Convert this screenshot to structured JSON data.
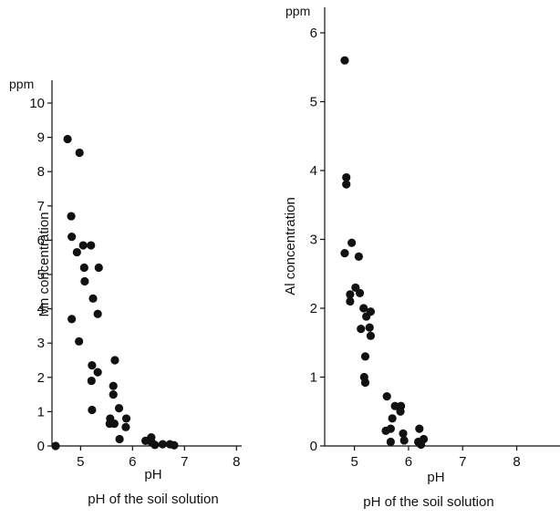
{
  "figure": {
    "background": "#ffffff",
    "ink": "#111111"
  },
  "chart_data": [
    {
      "type": "scatter",
      "title": "",
      "xlabel": "pH",
      "ylabel": "Mn concentration",
      "y_unit": "ppm",
      "caption": "pH of the soil solution",
      "xlim": [
        4.45,
        8.1
      ],
      "ylim": [
        0,
        10
      ],
      "xticks": [
        5,
        6,
        7,
        8
      ],
      "yticks": [
        0,
        1,
        2,
        3,
        4,
        5,
        6,
        7,
        8,
        9,
        10
      ],
      "grid": false,
      "legend": "none",
      "marker_color": "#111111",
      "points": [
        {
          "x": 4.52,
          "y": 0.0
        },
        {
          "x": 4.75,
          "y": 8.95
        },
        {
          "x": 4.98,
          "y": 8.55
        },
        {
          "x": 4.82,
          "y": 6.7
        },
        {
          "x": 4.83,
          "y": 6.1
        },
        {
          "x": 4.93,
          "y": 5.65
        },
        {
          "x": 5.05,
          "y": 5.85
        },
        {
          "x": 5.2,
          "y": 5.85
        },
        {
          "x": 5.07,
          "y": 5.2
        },
        {
          "x": 5.35,
          "y": 5.2
        },
        {
          "x": 5.08,
          "y": 4.8
        },
        {
          "x": 5.24,
          "y": 4.3
        },
        {
          "x": 5.33,
          "y": 3.85
        },
        {
          "x": 4.83,
          "y": 3.7
        },
        {
          "x": 4.97,
          "y": 3.05
        },
        {
          "x": 5.22,
          "y": 2.35
        },
        {
          "x": 5.33,
          "y": 2.15
        },
        {
          "x": 5.21,
          "y": 1.9
        },
        {
          "x": 5.66,
          "y": 2.5
        },
        {
          "x": 5.63,
          "y": 1.75
        },
        {
          "x": 5.63,
          "y": 1.5
        },
        {
          "x": 5.74,
          "y": 1.1
        },
        {
          "x": 5.22,
          "y": 1.05
        },
        {
          "x": 5.88,
          "y": 0.8
        },
        {
          "x": 5.57,
          "y": 0.8
        },
        {
          "x": 5.56,
          "y": 0.65
        },
        {
          "x": 5.65,
          "y": 0.65
        },
        {
          "x": 5.87,
          "y": 0.55
        },
        {
          "x": 5.75,
          "y": 0.2
        },
        {
          "x": 6.25,
          "y": 0.15
        },
        {
          "x": 6.36,
          "y": 0.25
        },
        {
          "x": 6.37,
          "y": 0.1
        },
        {
          "x": 6.43,
          "y": 0.03
        },
        {
          "x": 6.58,
          "y": 0.05
        },
        {
          "x": 6.72,
          "y": 0.05
        },
        {
          "x": 6.8,
          "y": 0.02
        }
      ]
    },
    {
      "type": "scatter",
      "title": "",
      "xlabel": "pH",
      "ylabel": "Al concentration",
      "y_unit": "ppm",
      "caption": "pH of the soil solution",
      "xlim": [
        4.45,
        8.8
      ],
      "ylim": [
        0,
        6
      ],
      "xticks": [
        5,
        6,
        7,
        8
      ],
      "yticks": [
        0,
        1,
        2,
        3,
        4,
        5,
        6
      ],
      "grid": false,
      "legend": "none",
      "marker_color": "#111111",
      "points": [
        {
          "x": 4.82,
          "y": 5.6
        },
        {
          "x": 4.85,
          "y": 3.9
        },
        {
          "x": 4.85,
          "y": 3.8
        },
        {
          "x": 4.82,
          "y": 2.8
        },
        {
          "x": 4.95,
          "y": 2.95
        },
        {
          "x": 5.08,
          "y": 2.75
        },
        {
          "x": 4.92,
          "y": 2.2
        },
        {
          "x": 5.02,
          "y": 2.3
        },
        {
          "x": 5.1,
          "y": 2.22
        },
        {
          "x": 4.92,
          "y": 2.1
        },
        {
          "x": 5.3,
          "y": 1.95
        },
        {
          "x": 5.17,
          "y": 2.0
        },
        {
          "x": 5.22,
          "y": 1.88
        },
        {
          "x": 5.12,
          "y": 1.7
        },
        {
          "x": 5.28,
          "y": 1.72
        },
        {
          "x": 5.3,
          "y": 1.6
        },
        {
          "x": 5.2,
          "y": 1.3
        },
        {
          "x": 5.18,
          "y": 1.0
        },
        {
          "x": 5.2,
          "y": 0.92
        },
        {
          "x": 5.6,
          "y": 0.72
        },
        {
          "x": 5.86,
          "y": 0.58
        },
        {
          "x": 5.75,
          "y": 0.58
        },
        {
          "x": 5.85,
          "y": 0.5
        },
        {
          "x": 5.7,
          "y": 0.4
        },
        {
          "x": 5.67,
          "y": 0.25
        },
        {
          "x": 5.58,
          "y": 0.22
        },
        {
          "x": 5.9,
          "y": 0.18
        },
        {
          "x": 5.67,
          "y": 0.06
        },
        {
          "x": 5.92,
          "y": 0.08
        },
        {
          "x": 6.2,
          "y": 0.25
        },
        {
          "x": 6.28,
          "y": 0.1
        },
        {
          "x": 6.18,
          "y": 0.06
        },
        {
          "x": 6.23,
          "y": 0.02
        }
      ]
    }
  ]
}
